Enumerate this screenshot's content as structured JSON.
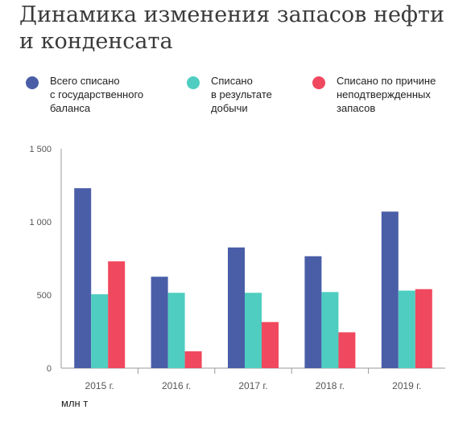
{
  "title_lines": [
    "Динамика изменения запасов нефти",
    "и конденсата"
  ],
  "unit_label": "млн т",
  "colors": {
    "series1": "#4a5ea8",
    "series2": "#4ecdc0",
    "series3": "#f0485e",
    "axis": "#9a9a9a"
  },
  "legend": [
    {
      "lines": [
        "Всего списано",
        "с государственного",
        "баланса"
      ]
    },
    {
      "lines": [
        "Списано",
        "в результате",
        "добычи"
      ]
    },
    {
      "lines": [
        "Списано по причине",
        "неподтвержденных",
        "запасов"
      ]
    }
  ],
  "chart_data": {
    "type": "bar",
    "title": "Динамика изменения запасов нефти и конденсата",
    "ylabel": "млн т",
    "categories": [
      "2015 г.",
      "2016 г.",
      "2017 г.",
      "2018 г.",
      "2019 г."
    ],
    "ylim": [
      0,
      1500
    ],
    "yticks": [
      0,
      500,
      1000,
      1500
    ],
    "ytick_labels": [
      "0",
      "500",
      "1 000",
      "1 500"
    ],
    "grid": false,
    "legend_position": "top",
    "series": [
      {
        "name": "Всего списано с государственного баланса",
        "color": "#4a5ea8",
        "values": [
          1230,
          625,
          825,
          765,
          1070
        ]
      },
      {
        "name": "Списано в результате добычи",
        "color": "#4ecdc0",
        "values": [
          505,
          515,
          515,
          520,
          530
        ]
      },
      {
        "name": "Списано по причине неподтвержденных запасов",
        "color": "#f0485e",
        "values": [
          730,
          115,
          315,
          245,
          540
        ]
      }
    ]
  }
}
